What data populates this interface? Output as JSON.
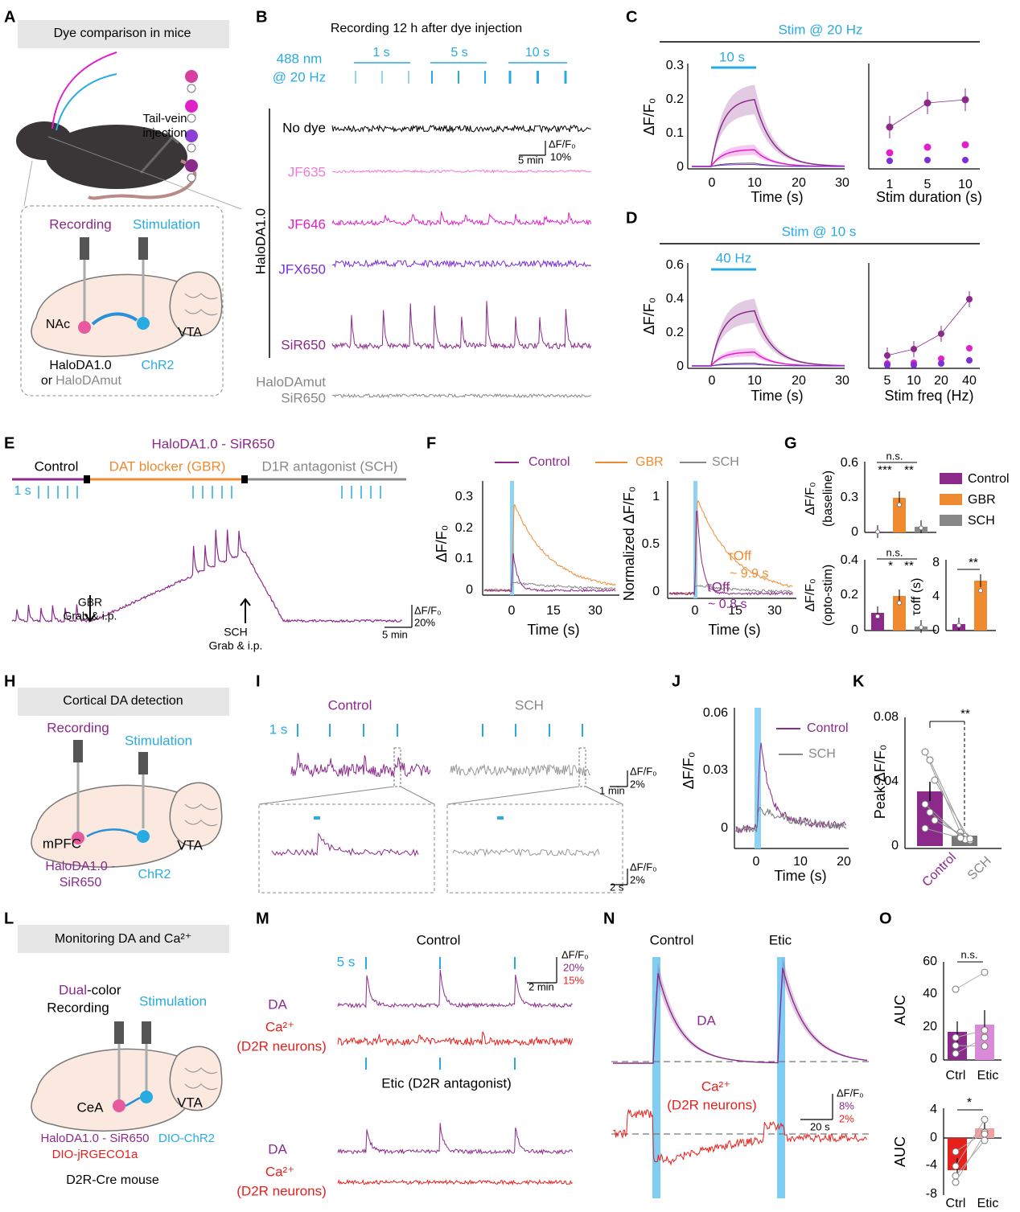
{
  "panels": {
    "A": {
      "texts": [
        "A",
        "Dye comparison in mice",
        "Tail-vein",
        "injection",
        "Recording",
        "Stimulation",
        "NAc",
        "VTA",
        "HaloDA1.0",
        "or",
        "HaloDAmut",
        "ChR2"
      ]
    },
    "B": {
      "texts": [
        "B",
        "Recording 12 h after dye injection",
        "488 nm",
        "@ 20 Hz",
        "1 s",
        "5 s",
        "10 s",
        "No dye",
        "ΔF/F₀",
        "10%",
        "5 min",
        "JF635",
        "JF646",
        "JFX650",
        "SiR650",
        "HaloDA1.0",
        "HaloDAmut",
        "SiR650"
      ]
    },
    "C": {
      "texts": [
        "C",
        "Stim @ 20 Hz",
        "10 s",
        "0.3",
        "0.2",
        "0.1",
        "0",
        "ΔF/F₀",
        "0",
        "10",
        "20",
        "30",
        "Time (s)",
        "1",
        "5",
        "10",
        "Stim duration (s)"
      ]
    },
    "D": {
      "texts": [
        "D",
        "Stim @ 10 s",
        "40 Hz",
        "0.6",
        "0.4",
        "0.2",
        "0",
        "ΔF/F₀",
        "0",
        "10",
        "20",
        "30",
        "Time (s)",
        "5",
        "10",
        "20",
        "40",
        "Stim freq (Hz)"
      ]
    },
    "E": {
      "texts": [
        "E",
        "HaloDA1.0 - SiR650",
        "Control",
        "DAT blocker (GBR)",
        "D1R antagonist (SCH)",
        "1 s",
        "GBR",
        "Grab & i.p.",
        "SCH",
        "Grab & i.p.",
        "ΔF/F₀",
        "20%",
        "5 min"
      ]
    },
    "F": {
      "texts": [
        "F",
        "Control",
        "GBR",
        "SCH",
        "0.3",
        "0.2",
        "0.1",
        "0",
        "ΔF/F₀",
        "0",
        "15",
        "30",
        "Time (s)",
        "1",
        "0.5",
        "0",
        "Normalized ΔF/F₀",
        "0",
        "15",
        "30",
        "Time (s)",
        "τOff",
        "~ 9.9 s",
        "τOff",
        "~ 0.8 s"
      ]
    },
    "G": {
      "texts": [
        "G",
        "0.6",
        "0.3",
        "0",
        "ΔF/F₀",
        "(baseline)",
        "n.s.",
        "***",
        "**",
        "Control",
        "GBR",
        "SCH",
        "0.4",
        "0.2",
        "0",
        "ΔF/F₀",
        "(opto-stim)",
        "n.s.",
        "*",
        "**",
        "8",
        "4",
        "0",
        "τoff (s)",
        "**"
      ]
    },
    "H": {
      "texts": [
        "H",
        "Cortical DA detection",
        "Recording",
        "Stimulation",
        "mPFC",
        "VTA",
        "HaloDA1.0 -",
        "SiR650",
        "ChR2"
      ]
    },
    "I": {
      "texts": [
        "I",
        "Control",
        "SCH",
        "1 s",
        "ΔF/F₀",
        "2%",
        "1 min",
        "ΔF/F₀",
        "2%",
        "2 s"
      ]
    },
    "J": {
      "texts": [
        "J",
        "0.06",
        "0.03",
        "0",
        "ΔF/F₀",
        "0",
        "10",
        "20",
        "Time (s)",
        "Control",
        "SCH"
      ]
    },
    "K": {
      "texts": [
        "K",
        "0.08",
        "0.04",
        "0",
        "Peak ΔF/F₀",
        "Control",
        "SCH",
        "**"
      ]
    },
    "L": {
      "texts": [
        "L",
        "Monitoring DA and Ca²⁺",
        "Dual",
        "-color",
        "Recording",
        "Stimulation",
        "CeA",
        "VTA",
        "HaloDA1.0 - SiR650",
        "DIO-jRGECO1a",
        "DIO-ChR2",
        "D2R-Cre mouse"
      ]
    },
    "M": {
      "texts": [
        "M",
        "Control",
        "5 s",
        "ΔF/F₀",
        "20%",
        "15%",
        "2 min",
        "DA",
        "Ca²⁺",
        "(D2R neurons)",
        "Etic (D2R antagonist)",
        "DA",
        "Ca²⁺",
        "(D2R neurons)"
      ]
    },
    "N": {
      "texts": [
        "N",
        "Control",
        "Etic",
        "DA",
        "Ca²⁺",
        "(D2R neurons)",
        "ΔF/F₀",
        "8%",
        "2%",
        "20 s"
      ]
    },
    "O": {
      "texts": [
        "O",
        "60",
        "40",
        "20",
        "0",
        "AUC",
        "n.s.",
        "Ctrl",
        "Etic",
        "4",
        "0",
        "-4",
        "-8",
        "AUC",
        "*",
        "Ctrl",
        "Etic"
      ]
    }
  }
}
